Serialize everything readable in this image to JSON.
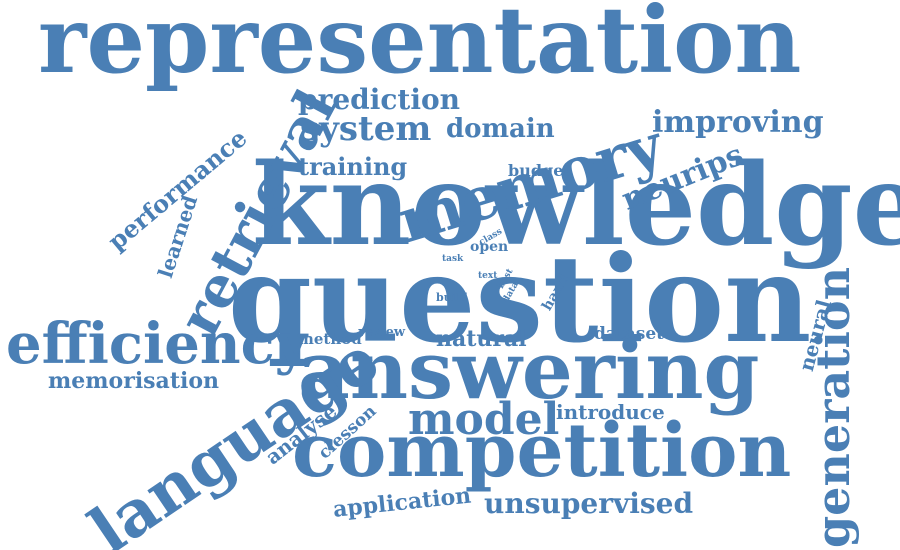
{
  "word_cloud": {
    "color": "#4a7fb5",
    "words": [
      {
        "text": "representation"
      },
      {
        "text": "knowledge"
      },
      {
        "text": "question"
      },
      {
        "text": "answering"
      },
      {
        "text": "competition"
      },
      {
        "text": "language"
      },
      {
        "text": "efficiency"
      },
      {
        "text": "retrieval"
      },
      {
        "text": "memory"
      },
      {
        "text": "generation"
      },
      {
        "text": "model"
      },
      {
        "text": "system"
      },
      {
        "text": "prediction"
      },
      {
        "text": "domain"
      },
      {
        "text": "improving"
      },
      {
        "text": "neurips"
      },
      {
        "text": "training"
      },
      {
        "text": "performance"
      },
      {
        "text": "learned"
      },
      {
        "text": "budget"
      },
      {
        "text": "memorisation"
      },
      {
        "text": "natural"
      },
      {
        "text": "unsupervised"
      },
      {
        "text": "application"
      },
      {
        "text": "introduce"
      },
      {
        "text": "analyse"
      },
      {
        "text": "clesson"
      },
      {
        "text": "neural"
      },
      {
        "text": "dataset"
      },
      {
        "text": "method"
      },
      {
        "text": "review"
      },
      {
        "text": "open"
      },
      {
        "text": "class"
      },
      {
        "text": "task"
      },
      {
        "text": "text"
      },
      {
        "text": "best"
      },
      {
        "text": "data"
      },
      {
        "text": "build"
      },
      {
        "text": "hand"
      }
    ]
  }
}
